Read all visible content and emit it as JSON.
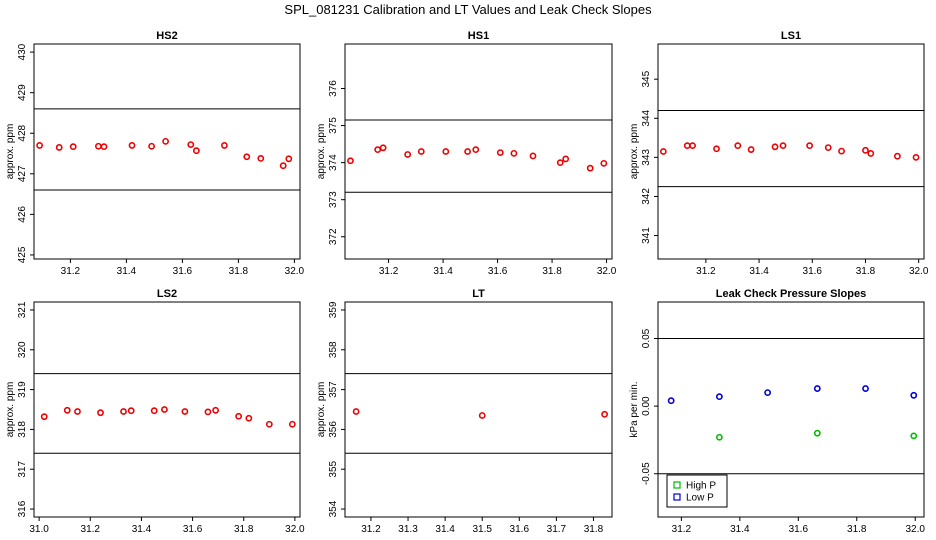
{
  "figure": {
    "title": "SPL_081231  Calibration and LT Values and Leak Check Slopes"
  },
  "chart_data": [
    {
      "type": "scatter",
      "title": "HS2",
      "ylabel": "approx. ppm",
      "xlim": [
        31.07,
        32.02
      ],
      "ylim": [
        424.9,
        430.2
      ],
      "xticks": [
        "31.2",
        "31.4",
        "31.6",
        "31.8",
        "32.0"
      ],
      "xtick_values": [
        31.2,
        31.4,
        31.6,
        31.8,
        32.0
      ],
      "yticks": [
        "425",
        "426",
        "427",
        "428",
        "429",
        "430"
      ],
      "ytick_values": [
        425,
        426,
        427,
        428,
        429,
        430
      ],
      "hlines": [
        428.6,
        426.6
      ],
      "series": [
        {
          "color": "#ee0000",
          "x": [
            31.09,
            31.16,
            31.21,
            31.3,
            31.32,
            31.42,
            31.49,
            31.54,
            31.63,
            31.65,
            31.75,
            31.83,
            31.88,
            31.96,
            31.98
          ],
          "y": [
            427.7,
            427.65,
            427.67,
            427.68,
            427.67,
            427.7,
            427.68,
            427.8,
            427.72,
            427.57,
            427.7,
            427.42,
            427.38,
            427.2,
            427.37
          ]
        }
      ]
    },
    {
      "type": "scatter",
      "title": "HS1",
      "ylabel": "approx. ppm",
      "xlim": [
        31.04,
        32.02
      ],
      "ylim": [
        371.4,
        377.2
      ],
      "xticks": [
        "31.2",
        "31.4",
        "31.6",
        "31.8",
        "32.0"
      ],
      "xtick_values": [
        31.2,
        31.4,
        31.6,
        31.8,
        32.0
      ],
      "yticks": [
        "372",
        "373",
        "374",
        "375",
        "376"
      ],
      "ytick_values": [
        372,
        373,
        374,
        375,
        376
      ],
      "hlines": [
        375.15,
        373.2
      ],
      "series": [
        {
          "color": "#ee0000",
          "x": [
            31.06,
            31.16,
            31.18,
            31.27,
            31.32,
            31.41,
            31.49,
            31.52,
            31.61,
            31.66,
            31.73,
            31.83,
            31.85,
            31.94,
            31.99
          ],
          "y": [
            374.05,
            374.35,
            374.4,
            374.22,
            374.3,
            374.3,
            374.3,
            374.35,
            374.27,
            374.25,
            374.18,
            374.0,
            374.1,
            373.85,
            373.98
          ]
        }
      ]
    },
    {
      "type": "scatter",
      "title": "LS1",
      "ylabel": "approx. ppm",
      "xlim": [
        31.02,
        32.02
      ],
      "ylim": [
        340.4,
        345.9
      ],
      "xticks": [
        "31.2",
        "31.4",
        "31.6",
        "31.8",
        "32.0"
      ],
      "xtick_values": [
        31.2,
        31.4,
        31.6,
        31.8,
        32.0
      ],
      "yticks": [
        "341",
        "342",
        "343",
        "344",
        "345"
      ],
      "ytick_values": [
        341,
        342,
        343,
        344,
        345
      ],
      "hlines": [
        344.2,
        342.25
      ],
      "series": [
        {
          "color": "#ee0000",
          "x": [
            31.04,
            31.13,
            31.15,
            31.24,
            31.32,
            31.37,
            31.46,
            31.49,
            31.59,
            31.66,
            31.71,
            31.8,
            31.82,
            31.92,
            31.99
          ],
          "y": [
            343.15,
            343.3,
            343.3,
            343.22,
            343.3,
            343.2,
            343.27,
            343.3,
            343.3,
            343.25,
            343.16,
            343.18,
            343.1,
            343.03,
            343.0
          ]
        }
      ]
    },
    {
      "type": "scatter",
      "title": "LS2",
      "ylabel": "approx. ppm",
      "xlim": [
        30.98,
        32.02
      ],
      "ylim": [
        315.8,
        321.2
      ],
      "xticks": [
        "31.0",
        "31.2",
        "31.4",
        "31.6",
        "31.8",
        "32.0"
      ],
      "xtick_values": [
        31.0,
        31.2,
        31.4,
        31.6,
        31.8,
        32.0
      ],
      "yticks": [
        "316",
        "317",
        "318",
        "319",
        "320",
        "321"
      ],
      "ytick_values": [
        316,
        317,
        318,
        319,
        320,
        321
      ],
      "hlines": [
        319.4,
        317.4
      ],
      "series": [
        {
          "color": "#ee0000",
          "x": [
            31.02,
            31.11,
            31.15,
            31.24,
            31.33,
            31.36,
            31.45,
            31.49,
            31.57,
            31.66,
            31.69,
            31.78,
            31.82,
            31.9,
            31.99
          ],
          "y": [
            318.32,
            318.48,
            318.45,
            318.42,
            318.45,
            318.47,
            318.47,
            318.5,
            318.45,
            318.44,
            318.48,
            318.33,
            318.28,
            318.13,
            318.13
          ]
        }
      ]
    },
    {
      "type": "scatter",
      "title": "LT",
      "ylabel": "approx. ppm",
      "xlim": [
        31.13,
        31.85
      ],
      "ylim": [
        353.8,
        359.2
      ],
      "xticks": [
        "31.2",
        "31.3",
        "31.4",
        "31.5",
        "31.6",
        "31.7",
        "31.8"
      ],
      "xtick_values": [
        31.2,
        31.3,
        31.4,
        31.5,
        31.6,
        31.7,
        31.8
      ],
      "yticks": [
        "354",
        "355",
        "356",
        "357",
        "358",
        "359"
      ],
      "ytick_values": [
        354,
        355,
        356,
        357,
        358,
        359
      ],
      "hlines": [
        357.4,
        355.4
      ],
      "series": [
        {
          "color": "#ee0000",
          "x": [
            31.16,
            31.5,
            31.83
          ],
          "y": [
            356.45,
            356.35,
            356.38
          ]
        }
      ]
    },
    {
      "type": "scatter",
      "title": "Leak Check Pressure Slopes",
      "ylabel": "kPa per min.",
      "xlim": [
        31.12,
        32.03
      ],
      "ylim": [
        -0.082,
        0.077
      ],
      "xticks": [
        "31.2",
        "31.4",
        "31.6",
        "31.8",
        "32.0"
      ],
      "xtick_values": [
        31.2,
        31.4,
        31.6,
        31.8,
        32.0
      ],
      "yticks": [
        "-0.05",
        "0.00",
        "0.05"
      ],
      "ytick_values": [
        -0.05,
        0.0,
        0.05
      ],
      "hlines": [
        0.05,
        -0.05
      ],
      "legend": {
        "position": "bottom-left",
        "entries": [
          "High P",
          "Low P"
        ]
      },
      "series": [
        {
          "name": "High P",
          "color": "#00bb00",
          "x": [
            31.33,
            31.665,
            31.995
          ],
          "y": [
            -0.023,
            -0.02,
            -0.022
          ]
        },
        {
          "name": "Low P",
          "color": "#0000dd",
          "x": [
            31.165,
            31.33,
            31.495,
            31.665,
            31.83,
            31.995
          ],
          "y": [
            0.004,
            0.007,
            0.01,
            0.013,
            0.013,
            0.008
          ]
        }
      ]
    }
  ]
}
